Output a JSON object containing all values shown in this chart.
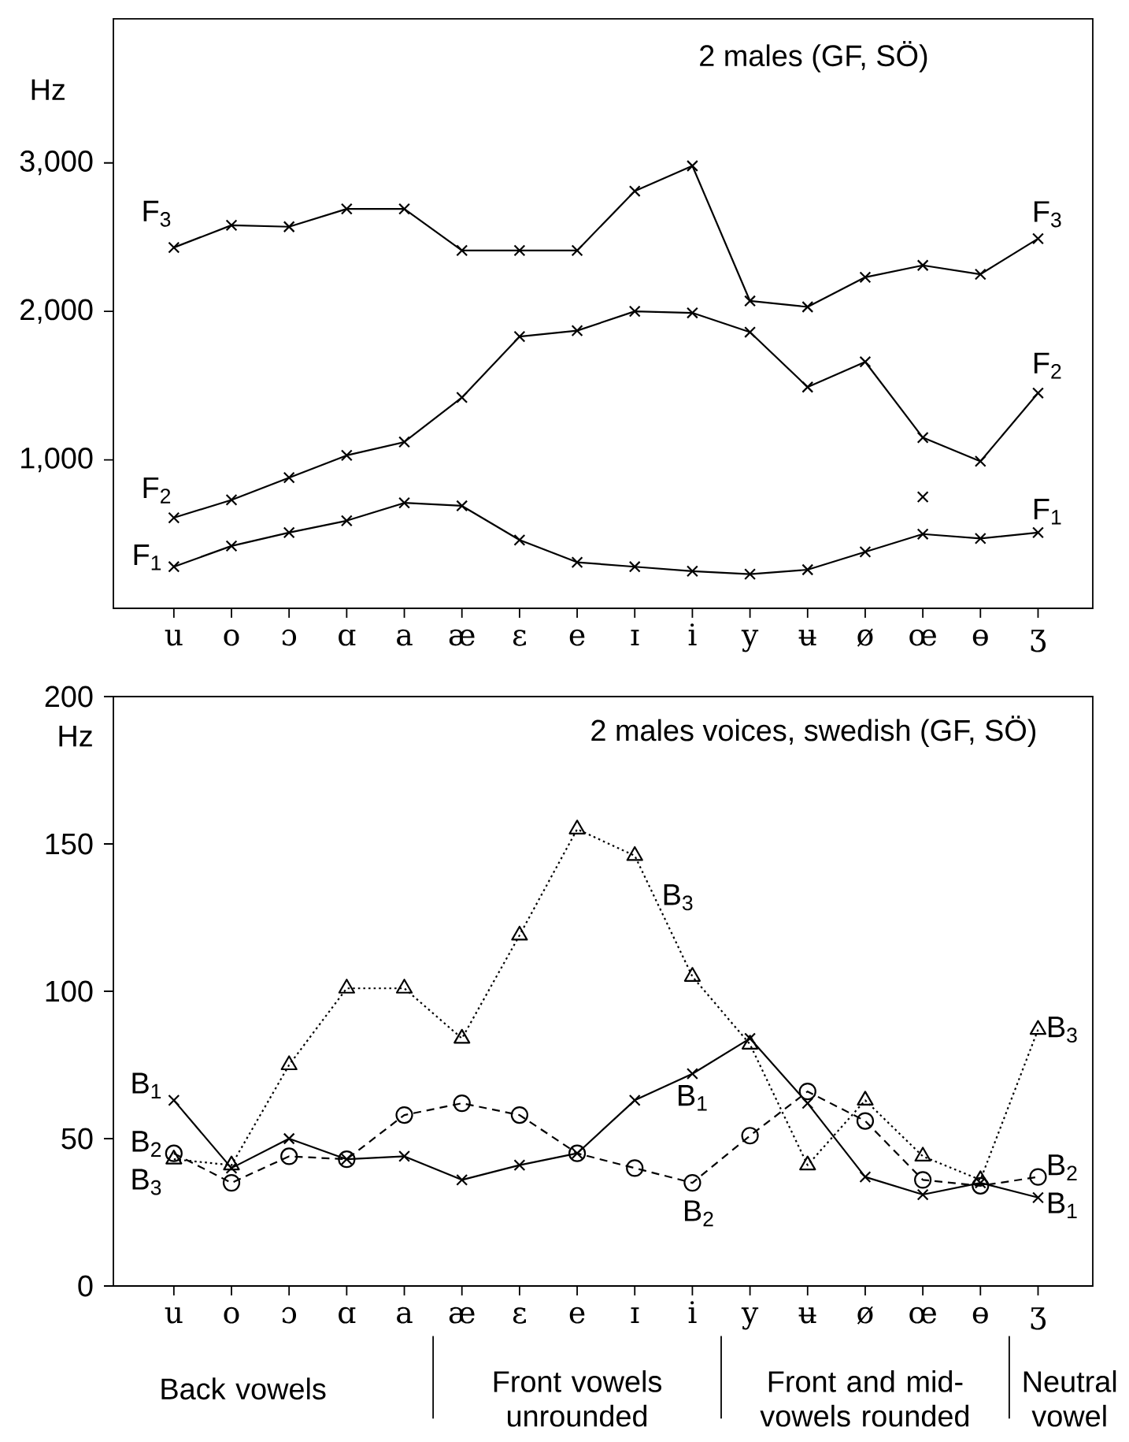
{
  "chart_data": [
    {
      "type": "line",
      "title": "2 males (GF, SÖ)",
      "ylabel": "Hz",
      "categories": [
        "u",
        "o",
        "ɔ",
        "ɑ",
        "a",
        "æ",
        "ɛ",
        "e",
        "ɪ",
        "i",
        "y",
        "ʉ",
        "ø",
        "œ",
        "ɵ",
        "ʒ"
      ],
      "series": [
        {
          "name": "F$_{1}$",
          "color": "#000000",
          "marker": "cross",
          "line_style": "solid",
          "values": [
            280,
            420,
            510,
            590,
            710,
            690,
            460,
            310,
            280,
            250,
            230,
            260,
            380,
            500,
            470,
            510
          ]
        },
        {
          "name": "F$_{2}$",
          "color": "#000000",
          "marker": "cross",
          "line_style": "solid",
          "values": [
            610,
            730,
            880,
            1030,
            1120,
            1420,
            1830,
            1870,
            2000,
            1990,
            1860,
            1490,
            1660,
            1150,
            990,
            1450
          ]
        },
        {
          "name": "F$_{3}$",
          "color": "#000000",
          "marker": "cross",
          "line_style": "solid",
          "values": [
            2430,
            2580,
            2570,
            2690,
            2690,
            2410,
            2410,
            2410,
            2810,
            2980,
            2070,
            2030,
            2230,
            2310,
            2250,
            2490
          ]
        },
        {
          "type": "scatter",
          "color": "#000000",
          "marker": "cross",
          "x": [
            "œ"
          ],
          "values": [
            750
          ]
        }
      ],
      "ylim": [
        0,
        3970
      ],
      "yticks": [
        {
          "value": 1000,
          "label": "1,000"
        },
        {
          "value": 2000,
          "label": "2,000"
        },
        {
          "value": 3000,
          "label": "3,000"
        }
      ],
      "grid": false
    },
    {
      "type": "line",
      "title": "2 males voices, swedish (GF, SÖ)",
      "ylabel": "Hz",
      "categories": [
        "u",
        "o",
        "ɔ",
        "ɑ",
        "a",
        "æ",
        "ɛ",
        "e",
        "ɪ",
        "i",
        "y",
        "ʉ",
        "ø",
        "œ",
        "ɵ",
        "ʒ"
      ],
      "series": [
        {
          "name": "B$_{1}$",
          "color": "#000000",
          "marker": "cross",
          "line_style": "solid",
          "values": [
            63,
            40,
            50,
            43,
            44,
            36,
            41,
            45,
            63,
            72,
            84,
            62,
            37,
            31,
            35,
            30
          ]
        },
        {
          "name": "B$_{2}$",
          "color": "#000000",
          "marker": "circle",
          "line_style": "dashed",
          "values": [
            45,
            35,
            44,
            43,
            58,
            62,
            58,
            45,
            40,
            35,
            51,
            66,
            56,
            36,
            34,
            37
          ]
        },
        {
          "name": "B$_{3}$",
          "color": "#000000",
          "marker": "triangle",
          "line_style": "dotted",
          "values": [
            43,
            41,
            75,
            101,
            101,
            84,
            119,
            155,
            146,
            105,
            82,
            41,
            63,
            44,
            36,
            87
          ]
        }
      ],
      "ylim": [
        0,
        200
      ],
      "yticks": [
        0,
        50,
        100,
        150,
        200
      ],
      "grid": false,
      "annotations": [
        "Back vowels",
        "Front vowels unrounded",
        "Front and mid- vowels rounded",
        "Neutral vowel"
      ]
    }
  ]
}
